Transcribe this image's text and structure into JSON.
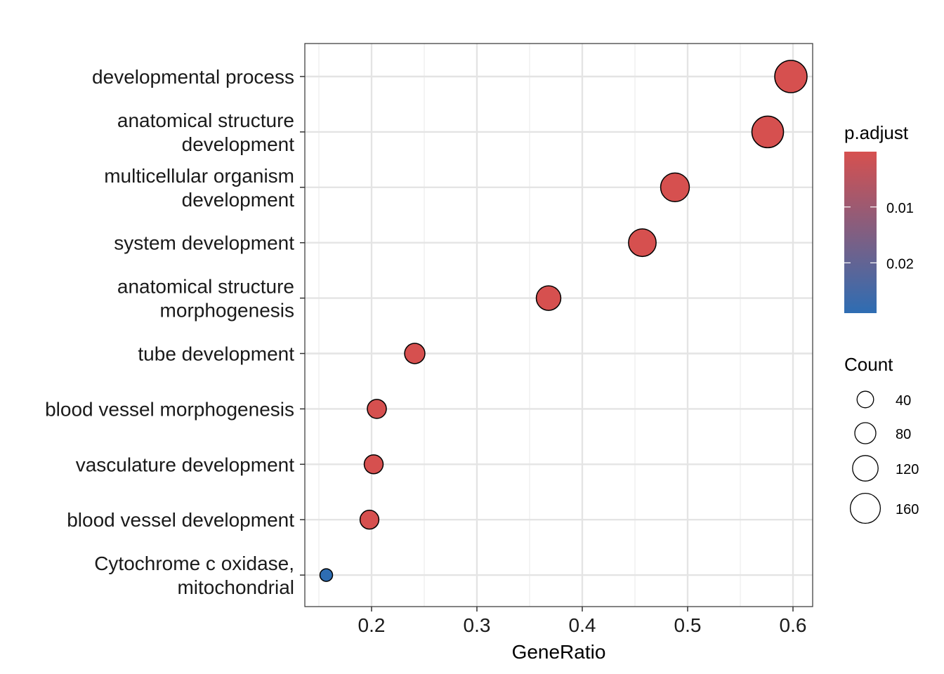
{
  "chart_data": {
    "type": "scatter",
    "xlabel": "GeneRatio",
    "ylabel": "",
    "xlim": [
      0.135,
      0.62
    ],
    "xticks": [
      "0.2",
      "0.3",
      "0.4",
      "0.5",
      "0.6"
    ],
    "xtick_values": [
      0.2,
      0.3,
      0.4,
      0.5,
      0.6
    ],
    "grid": true,
    "categories": [
      "developmental process",
      "anatomical structure development",
      "multicellular organism development",
      "system development",
      "anatomical structure morphogenesis",
      "tube development",
      "blood vessel morphogenesis",
      "vasculature development",
      "blood vessel development",
      "Cytochrome c oxidase, mitochondrial"
    ],
    "category_lines": [
      [
        "developmental process"
      ],
      [
        "anatomical structure",
        "development"
      ],
      [
        "multicellular organism",
        "development"
      ],
      [
        "system development"
      ],
      [
        "anatomical structure",
        "morphogenesis"
      ],
      [
        "tube development"
      ],
      [
        "blood vessel morphogenesis"
      ],
      [
        "vasculature development"
      ],
      [
        "blood vessel development"
      ],
      [
        "Cytochrome c oxidase,",
        "mitochondrial"
      ]
    ],
    "points": [
      {
        "term": "developmental process",
        "gene_ratio": 0.598,
        "count": 180,
        "p_adjust": 0.0001
      },
      {
        "term": "anatomical structure development",
        "gene_ratio": 0.576,
        "count": 174,
        "p_adjust": 0.0001
      },
      {
        "term": "multicellular organism development",
        "gene_ratio": 0.488,
        "count": 148,
        "p_adjust": 0.0001
      },
      {
        "term": "system development",
        "gene_ratio": 0.457,
        "count": 138,
        "p_adjust": 0.0001
      },
      {
        "term": "anatomical structure morphogenesis",
        "gene_ratio": 0.368,
        "count": 111,
        "p_adjust": 0.0001
      },
      {
        "term": "tube development",
        "gene_ratio": 0.241,
        "count": 73,
        "p_adjust": 0.0001
      },
      {
        "term": "blood vessel morphogenesis",
        "gene_ratio": 0.205,
        "count": 62,
        "p_adjust": 0.0001
      },
      {
        "term": "vasculature development",
        "gene_ratio": 0.202,
        "count": 61,
        "p_adjust": 0.0001
      },
      {
        "term": "blood vessel development",
        "gene_ratio": 0.198,
        "count": 60,
        "p_adjust": 0.0001
      },
      {
        "term": "Cytochrome c oxidase, mitochondrial",
        "gene_ratio": 0.157,
        "count": 5,
        "p_adjust": 0.029
      }
    ],
    "color_legend": {
      "title": "p.adjust",
      "breaks": [
        0.01,
        0.02
      ],
      "labels": [
        "0.01",
        "0.02"
      ],
      "range": [
        0.0001,
        0.029
      ],
      "low_color": "#d6504f",
      "high_color": "#2e6db3"
    },
    "size_legend": {
      "title": "Count",
      "breaks": [
        40,
        80,
        120,
        160
      ],
      "labels": [
        "40",
        "80",
        "120",
        "160"
      ],
      "count_range": [
        5,
        180
      ]
    }
  }
}
